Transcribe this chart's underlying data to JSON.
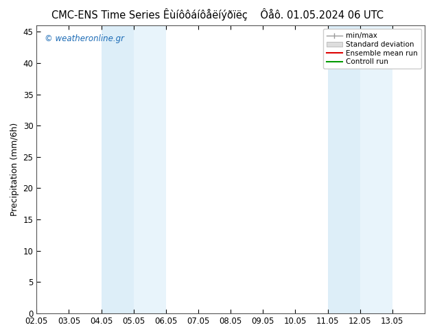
{
  "title": "CMC-ENS Time Series Êùíôôáíôåëíýðïëç",
  "title2": "Ôåô. 01.05.2024 06 UTC",
  "ylabel": "Precipitation (mm/6h)",
  "watermark": "© weatheronline.gr",
  "xlim_min": 0,
  "xlim_max": 12,
  "ylim_min": 0,
  "ylim_max": 46,
  "yticks": [
    0,
    5,
    10,
    15,
    20,
    25,
    30,
    35,
    40,
    45
  ],
  "xtick_labels": [
    "02.05",
    "03.05",
    "04.05",
    "05.05",
    "06.05",
    "07.05",
    "08.05",
    "09.05",
    "10.05",
    "11.05",
    "12.05",
    "13.05"
  ],
  "shade_bands": [
    {
      "xmin": 2,
      "xmax": 3,
      "color": "#ddeef8"
    },
    {
      "xmin": 3,
      "xmax": 4,
      "color": "#e8f4fb"
    },
    {
      "xmin": 9,
      "xmax": 10,
      "color": "#ddeef8"
    },
    {
      "xmin": 10,
      "xmax": 11,
      "color": "#e8f4fb"
    }
  ],
  "legend_labels": [
    "min/max",
    "Standard deviation",
    "Ensemble mean run",
    "Controll run"
  ],
  "legend_colors_line": [
    "#999999",
    "#cccccc",
    "#dd0000",
    "#009900"
  ],
  "background_color": "#ffffff",
  "plot_bg_color": "#ffffff",
  "border_color": "#000000",
  "title_fontsize": 10.5,
  "axis_fontsize": 9,
  "tick_fontsize": 8.5,
  "watermark_color": "#1a6ab5"
}
